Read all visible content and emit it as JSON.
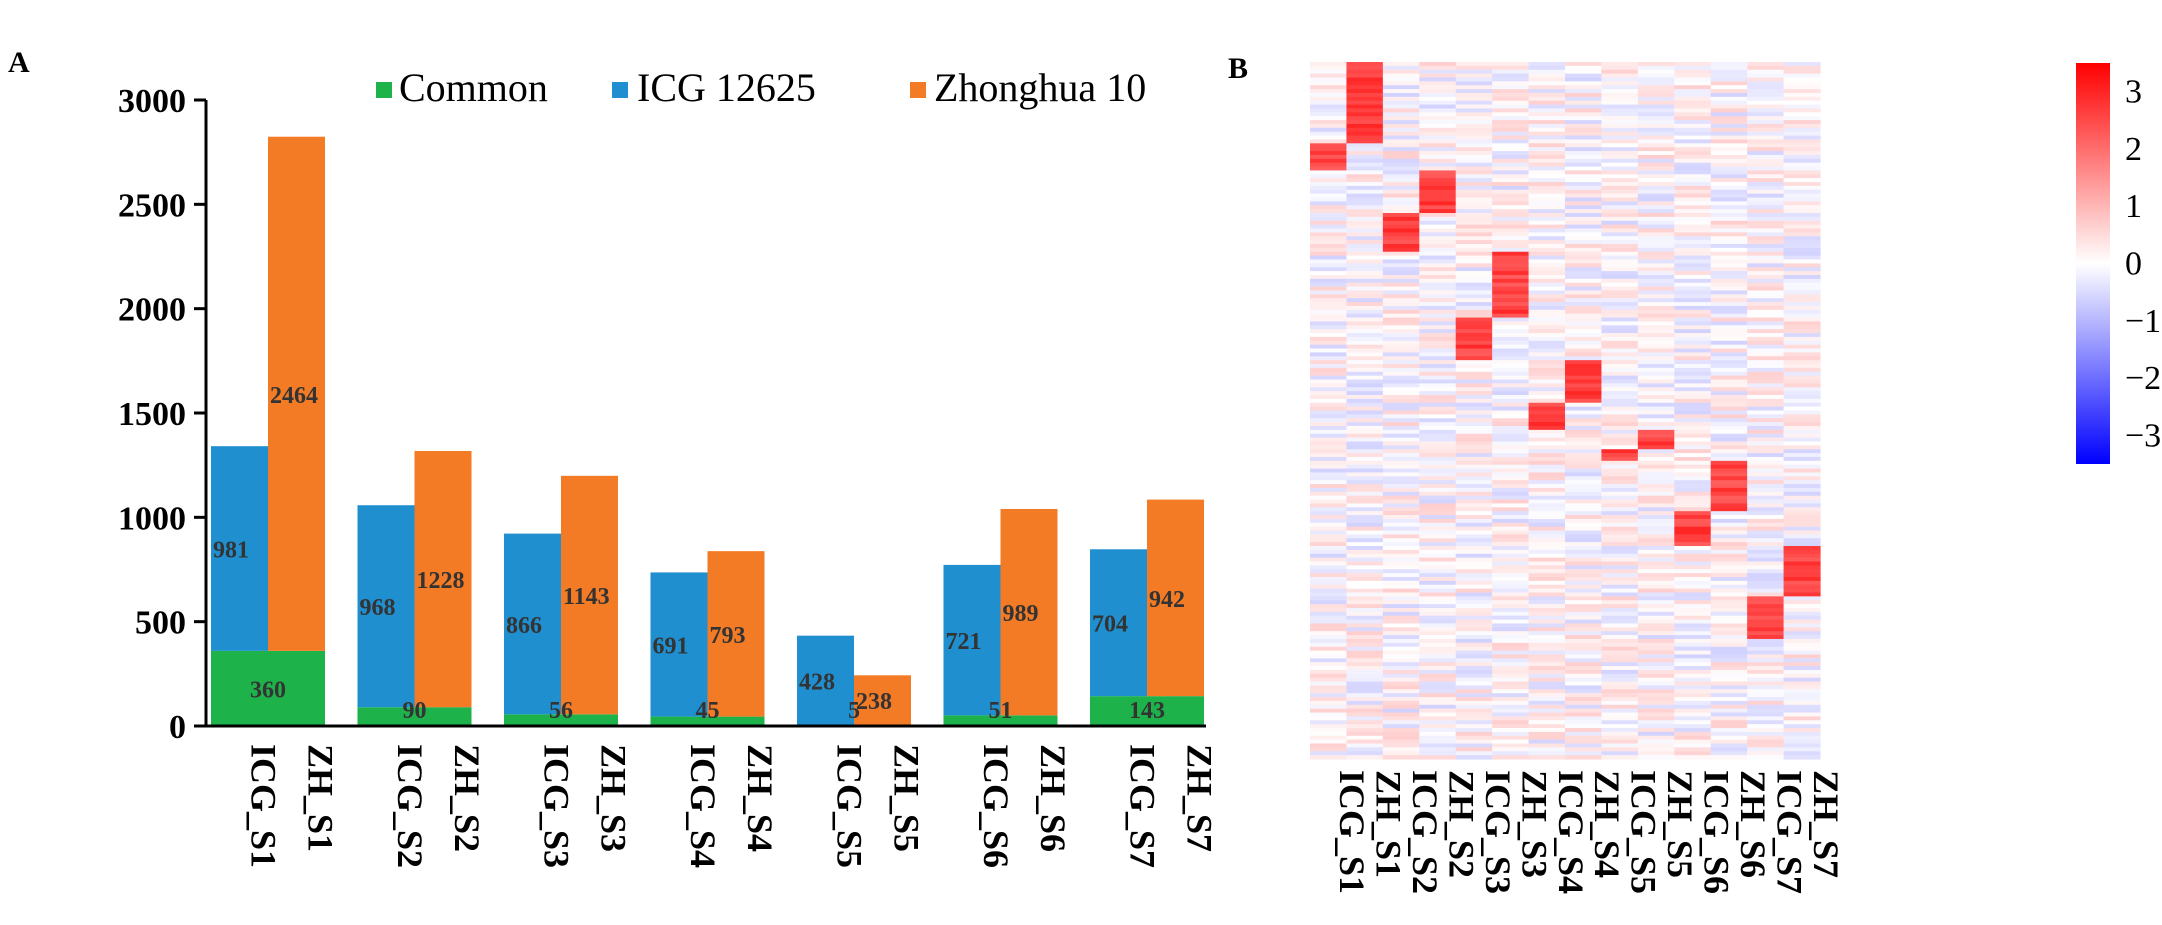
{
  "panel_labels": {
    "a": "A",
    "b": "B"
  },
  "colors": {
    "common": "#1eb24b",
    "icg": "#1f8fcf",
    "zh": "#f47b25"
  },
  "chart_data": [
    {
      "type": "bar",
      "title": "",
      "xlabel": "",
      "ylabel": "",
      "ylim": [
        0,
        3000
      ],
      "yticks": [
        0,
        500,
        1000,
        1500,
        2000,
        2500,
        3000
      ],
      "legend_position": "top",
      "legend": [
        {
          "key": "common",
          "label": "Common"
        },
        {
          "key": "icg",
          "label": "ICG 12625"
        },
        {
          "key": "zh",
          "label": "Zhonghua 10"
        }
      ],
      "stages": [
        {
          "icg_cat": "ICG_S1",
          "zh_cat": "ZH_S1",
          "common": 360,
          "icg": 981,
          "zh": 2464
        },
        {
          "icg_cat": "ICG_S2",
          "zh_cat": "ZH_S2",
          "common": 90,
          "icg": 968,
          "zh": 1228
        },
        {
          "icg_cat": "ICG_S3",
          "zh_cat": "ZH_S3",
          "common": 56,
          "icg": 866,
          "zh": 1143
        },
        {
          "icg_cat": "ICG_S4",
          "zh_cat": "ZH_S4",
          "common": 45,
          "icg": 691,
          "zh": 793
        },
        {
          "icg_cat": "ICG_S5",
          "zh_cat": "ZH_S5",
          "common": 5,
          "icg": 428,
          "zh": 238
        },
        {
          "icg_cat": "ICG_S6",
          "zh_cat": "ZH_S6",
          "common": 51,
          "icg": 721,
          "zh": 989
        },
        {
          "icg_cat": "ICG_S7",
          "zh_cat": "ZH_S7",
          "common": 143,
          "icg": 704,
          "zh": 942
        }
      ]
    },
    {
      "type": "heatmap",
      "columns": [
        "ICG_S1",
        "ZH_S1",
        "ICG_S2",
        "ZH_S2",
        "ICG_S3",
        "ZH_S3",
        "ICG_S4",
        "ZH_S4",
        "ICG_S5",
        "ZH_S5",
        "ICG_S6",
        "ZH_S6",
        "ICG_S7",
        "ZH_S7"
      ],
      "colorbar": {
        "min": -3.5,
        "max": 3.5,
        "ticks": [
          3,
          2,
          1,
          0,
          -1,
          -2,
          -3
        ],
        "low": "#0000ff",
        "mid": "#ffffff",
        "high": "#ff0000"
      },
      "block_rows": [
        {
          "col": 1,
          "start": 0.0,
          "end": 0.118
        },
        {
          "col": 0,
          "start": 0.118,
          "end": 0.158
        },
        {
          "col": 3,
          "start": 0.158,
          "end": 0.218
        },
        {
          "col": 2,
          "start": 0.218,
          "end": 0.275
        },
        {
          "col": 5,
          "start": 0.275,
          "end": 0.365
        },
        {
          "col": 4,
          "start": 0.365,
          "end": 0.428
        },
        {
          "col": 7,
          "start": 0.428,
          "end": 0.487
        },
        {
          "col": 6,
          "start": 0.487,
          "end": 0.528
        },
        {
          "col": 9,
          "start": 0.528,
          "end": 0.554
        },
        {
          "col": 8,
          "start": 0.554,
          "end": 0.575
        },
        {
          "col": 11,
          "start": 0.575,
          "end": 0.643
        },
        {
          "col": 10,
          "start": 0.643,
          "end": 0.692
        },
        {
          "col": 13,
          "start": 0.692,
          "end": 0.765
        },
        {
          "col": 12,
          "start": 0.765,
          "end": 0.83
        }
      ]
    }
  ]
}
